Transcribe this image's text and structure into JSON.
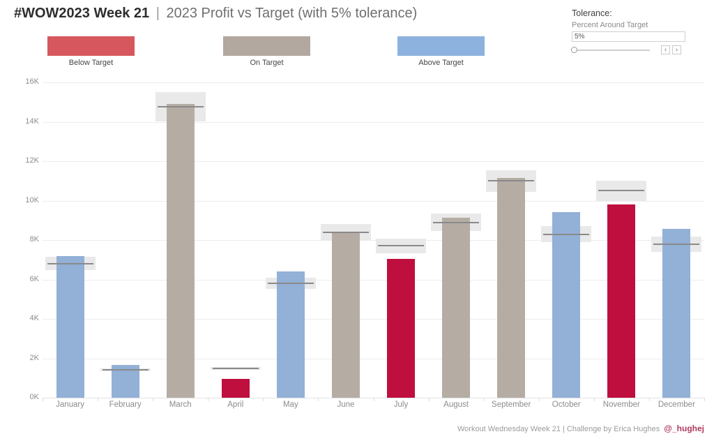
{
  "title": {
    "main": "#WOW2023 Week 21",
    "separator": "|",
    "subtitle": "2023 Profit vs Target (with 5% tolerance)"
  },
  "legend": {
    "items": [
      {
        "label": "Below Target",
        "color": "#d6585e"
      },
      {
        "label": "On Target",
        "color": "#b2a8a0"
      },
      {
        "label": "Above Target",
        "color": "#8db2de"
      }
    ]
  },
  "tolerance_control": {
    "title": "Tolerance:",
    "param_label": "Percent Around Target",
    "value": "5%",
    "slider_position_pct": 0,
    "prev_icon": "‹",
    "next_icon": "›"
  },
  "footer": {
    "text": "Workout Wednesday Week 21 | Challenge by Erica Hughes",
    "handle": "@_hughej"
  },
  "chart_data": {
    "type": "bar",
    "title": "2023 Profit vs Target (with 5% tolerance)",
    "xlabel": "",
    "ylabel": "",
    "categories": [
      "January",
      "February",
      "March",
      "April",
      "May",
      "June",
      "July",
      "August",
      "September",
      "October",
      "November",
      "December"
    ],
    "series": [
      {
        "name": "Profit",
        "values": [
          7200,
          1650,
          14900,
          950,
          6400,
          8350,
          7050,
          9150,
          11150,
          9400,
          9800,
          8550
        ]
      },
      {
        "name": "Target",
        "values": [
          6800,
          1400,
          14750,
          1500,
          5800,
          8400,
          7700,
          8900,
          11000,
          8300,
          10500,
          7800
        ]
      }
    ],
    "status": [
      "above",
      "above",
      "on",
      "below",
      "above",
      "on",
      "below",
      "on",
      "on",
      "above",
      "below",
      "above"
    ],
    "tolerance_pct": 5,
    "ylim": [
      0,
      16000
    ],
    "yticks": [
      "0K",
      "2K",
      "4K",
      "6K",
      "8K",
      "10K",
      "12K",
      "14K",
      "16K"
    ],
    "ytick_values": [
      0,
      2000,
      4000,
      6000,
      8000,
      10000,
      12000,
      14000,
      16000
    ],
    "grid": true,
    "legend_position": "top",
    "colors": {
      "below": "#be0f3f",
      "on": "#b5aca4",
      "above": "#93b0d7",
      "band": "#e9e9e9",
      "target_line": "#8a8a8a"
    }
  }
}
